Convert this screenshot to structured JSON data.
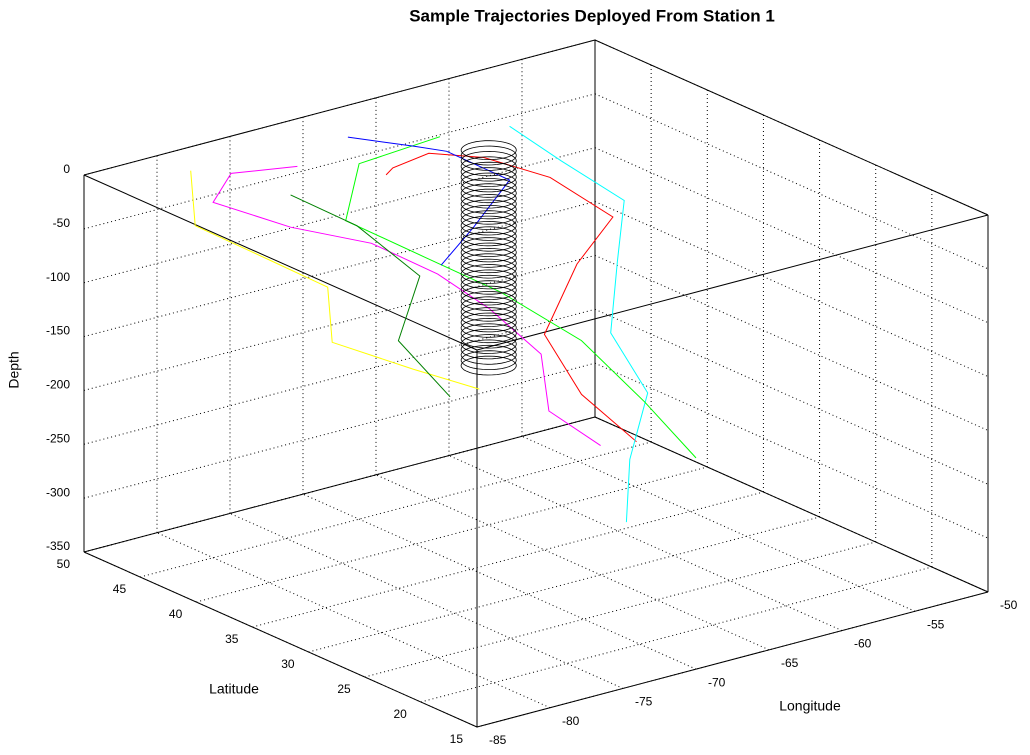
{
  "chart_data": {
    "type": "line3d",
    "title": "Sample Trajectories Deployed From Station 1",
    "xlabel": "Longitude",
    "ylabel": "Latitude",
    "zlabel": "Depth",
    "xlim": [
      -85,
      -50
    ],
    "ylim": [
      15,
      50
    ],
    "zlim": [
      -350,
      0
    ],
    "xticks": [
      -85,
      -80,
      -75,
      -70,
      -65,
      -60,
      -55,
      -50
    ],
    "yticks": [
      15,
      20,
      25,
      30,
      35,
      40,
      45,
      50
    ],
    "zticks": [
      -350,
      -300,
      -250,
      -200,
      -150,
      -100,
      -50,
      0
    ],
    "grid": true,
    "series": [
      {
        "color": "#ff0000",
        "x": [
          -72,
          -70,
          -66,
          -63,
          -60,
          -58,
          -62,
          -65,
          -64,
          -61
        ],
        "y": [
          40,
          42,
          44,
          43,
          41,
          38,
          36,
          35,
          33,
          32
        ],
        "z": [
          0,
          -10,
          -20,
          -30,
          -50,
          -80,
          -100,
          -150,
          -200,
          -250
        ]
      },
      {
        "color": "#ff00ff",
        "x": [
          -75,
          -78,
          -80,
          -77,
          -73,
          -70,
          -68,
          -66,
          -67,
          -65
        ],
        "y": [
          44,
          46,
          45,
          42,
          40,
          38,
          36,
          34,
          32,
          30
        ],
        "z": [
          0,
          -5,
          -20,
          -40,
          -60,
          -90,
          -120,
          -160,
          -200,
          -230
        ]
      },
      {
        "color": "#00ffff",
        "x": [
          -62,
          -60,
          -58,
          -60,
          -62,
          -61,
          -63,
          -64
        ],
        "y": [
          42,
          40,
          37,
          35,
          33,
          31,
          30,
          29
        ],
        "z": [
          0,
          -30,
          -60,
          -100,
          -150,
          -200,
          -250,
          -300
        ]
      },
      {
        "color": "#ffff00",
        "x": [
          -80,
          -82,
          -79,
          -76,
          -78,
          -74,
          -71
        ],
        "y": [
          47,
          44,
          41,
          40,
          37,
          35,
          33
        ],
        "z": [
          0,
          -30,
          -60,
          -90,
          -120,
          -150,
          -170
        ]
      },
      {
        "color": "#00ff00",
        "x": [
          -66,
          -70,
          -74,
          -71,
          -68,
          -64,
          -62,
          -60
        ],
        "y": [
          43,
          45,
          41,
          38,
          35,
          33,
          30,
          28
        ],
        "z": [
          0,
          -20,
          -40,
          -70,
          -100,
          -150,
          -200,
          -250
        ]
      },
      {
        "color": "#0000ff",
        "x": [
          -70,
          -67,
          -64,
          -62,
          -66,
          -69
        ],
        "y": [
          46,
          44,
          45,
          42,
          40,
          39
        ],
        "z": [
          0,
          -10,
          -30,
          -50,
          -70,
          -90
        ]
      },
      {
        "color": "#008000",
        "x": [
          -77,
          -74,
          -72,
          -75,
          -73
        ],
        "y": [
          42,
          40,
          37,
          35,
          33
        ],
        "z": [
          -10,
          -40,
          -80,
          -120,
          -170
        ]
      }
    ],
    "cylinder": {
      "color": "#000000",
      "x": -65.2,
      "y": 39.7,
      "radius": 1.5,
      "zlim": [
        -200,
        0
      ]
    }
  }
}
